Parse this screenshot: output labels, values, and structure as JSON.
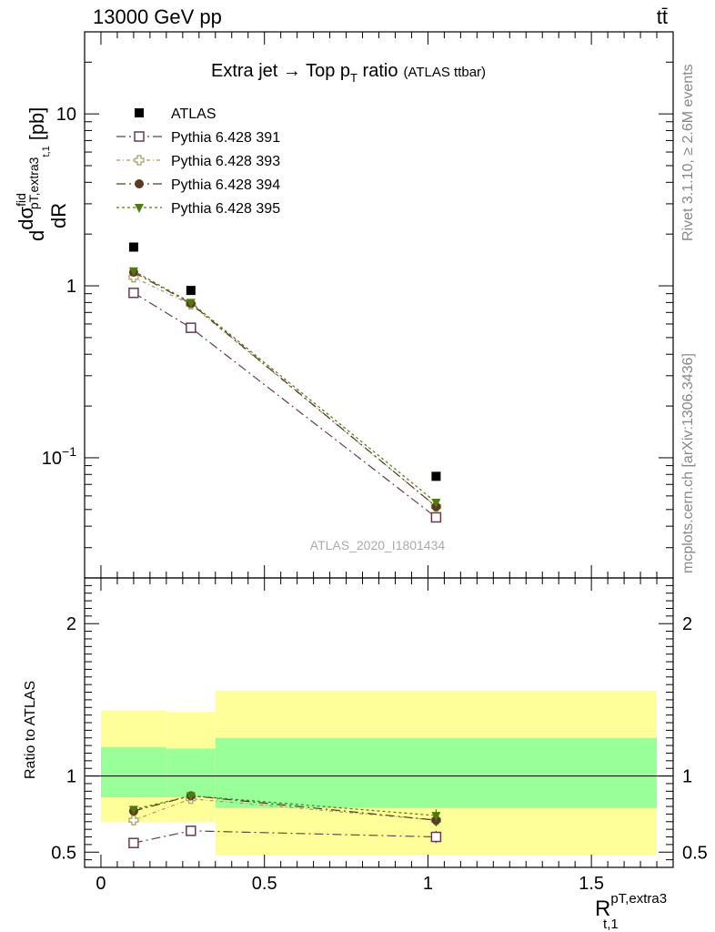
{
  "header": {
    "left": "13000 GeV pp",
    "right": "tt̄"
  },
  "side_labels": {
    "rivet": "Rivet 3.1.10, ≥ 2.6M events",
    "mcplots": "mcplots.cern.ch [arXiv:1306.3436]"
  },
  "watermark": "ATLAS_2020_I1801434",
  "main_title": {
    "text": "Extra jet → Top p",
    "sub": "T",
    "rest": " ratio",
    "small": "(ATLAS ttbar)"
  },
  "upper_ylabel": {
    "d1": "d",
    "sigma": "dσ",
    "sigma_sup": "fid",
    "sigma_sub": "pT,extra3",
    "denom": "dR",
    "denom_sub": "t,1",
    "unit": "[pb]"
  },
  "lower_ylabel": "Ratio to ATLAS",
  "xlabel": {
    "main": "R",
    "sup": "pT,extra3",
    "sub": "t,1"
  },
  "colors": {
    "data": "#000000",
    "p391": "#6b3a4a",
    "p393": "#a89a5a",
    "p394": "#5a3a22",
    "p395": "#4f7a10",
    "band_outer": "#ffff99",
    "band_inner": "#99ff99"
  },
  "chart_data": [
    {
      "type": "scatter",
      "panel": "main",
      "yscale": "log",
      "xlim": [
        -0.05,
        1.75
      ],
      "ylim": [
        0.02,
        30
      ],
      "yticks": [
        {
          "v": 0.1,
          "label": "10^-1"
        },
        {
          "v": 1,
          "label": "1"
        },
        {
          "v": 10,
          "label": "10"
        }
      ],
      "legend_position": "top-left",
      "series": [
        {
          "name": "ATLAS",
          "key": "data",
          "marker": "square-filled",
          "x": [
            0.1,
            0.275,
            1.025
          ],
          "y": [
            1.68,
            0.94,
            0.078
          ]
        },
        {
          "name": "Pythia 6.428 391",
          "key": "p391",
          "marker": "square-open",
          "dash": "dashdot",
          "x": [
            0.1,
            0.275,
            1.025
          ],
          "y": [
            0.91,
            0.57,
            0.045
          ]
        },
        {
          "name": "Pythia 6.428 393",
          "key": "p393",
          "marker": "cross-open",
          "dash": "dotdash",
          "x": [
            0.1,
            0.275,
            1.025
          ],
          "y": [
            1.12,
            0.78,
            0.052
          ]
        },
        {
          "name": "Pythia 6.428 394",
          "key": "p394",
          "marker": "circle-filled",
          "dash": "dashdot",
          "x": [
            0.1,
            0.275,
            1.025
          ],
          "y": [
            1.2,
            0.79,
            0.052
          ]
        },
        {
          "name": "Pythia 6.428 395",
          "key": "p395",
          "marker": "triangle-down-filled",
          "dash": "dotted",
          "x": [
            0.1,
            0.275,
            1.025
          ],
          "y": [
            1.22,
            0.8,
            0.055
          ]
        }
      ]
    },
    {
      "type": "scatter",
      "panel": "ratio",
      "xlim": [
        -0.05,
        1.75
      ],
      "ylim": [
        0.4,
        2.3
      ],
      "xticks": [
        0,
        0.5,
        1,
        1.5
      ],
      "yticks": [
        0.5,
        1,
        2
      ],
      "bands": [
        {
          "xlo": 0.0,
          "xhi": 0.2,
          "outer": [
            0.7,
            1.43
          ],
          "inner": [
            0.86,
            1.19
          ]
        },
        {
          "xlo": 0.2,
          "xhi": 0.35,
          "outer": [
            0.7,
            1.42
          ],
          "inner": [
            0.86,
            1.18
          ]
        },
        {
          "xlo": 0.35,
          "xhi": 1.7,
          "outer": [
            0.48,
            1.56
          ],
          "inner": [
            0.79,
            1.25
          ]
        }
      ],
      "series": [
        {
          "name": "Pythia 6.428 391",
          "key": "p391",
          "marker": "square-open",
          "dash": "dashdot",
          "x": [
            0.1,
            0.275,
            1.025
          ],
          "y": [
            0.56,
            0.64,
            0.6
          ],
          "err": [
            0.01,
            0.03,
            0.04
          ]
        },
        {
          "name": "Pythia 6.428 393",
          "key": "p393",
          "marker": "cross-open",
          "dash": "dotdash",
          "x": [
            0.1,
            0.275,
            1.025
          ],
          "y": [
            0.71,
            0.85,
            0.71
          ],
          "err": [
            0.02,
            0.03,
            0.04
          ]
        },
        {
          "name": "Pythia 6.428 394",
          "key": "p394",
          "marker": "circle-filled",
          "dash": "dashdot",
          "x": [
            0.1,
            0.275,
            1.025
          ],
          "y": [
            0.77,
            0.87,
            0.71
          ],
          "err": [
            0.02,
            0.03,
            0.04
          ]
        },
        {
          "name": "Pythia 6.428 395",
          "key": "p395",
          "marker": "triangle-down-filled",
          "dash": "dotted",
          "x": [
            0.1,
            0.275,
            1.025
          ],
          "y": [
            0.78,
            0.87,
            0.74
          ],
          "err": [
            0.02,
            0.03,
            0.04
          ]
        }
      ]
    }
  ]
}
